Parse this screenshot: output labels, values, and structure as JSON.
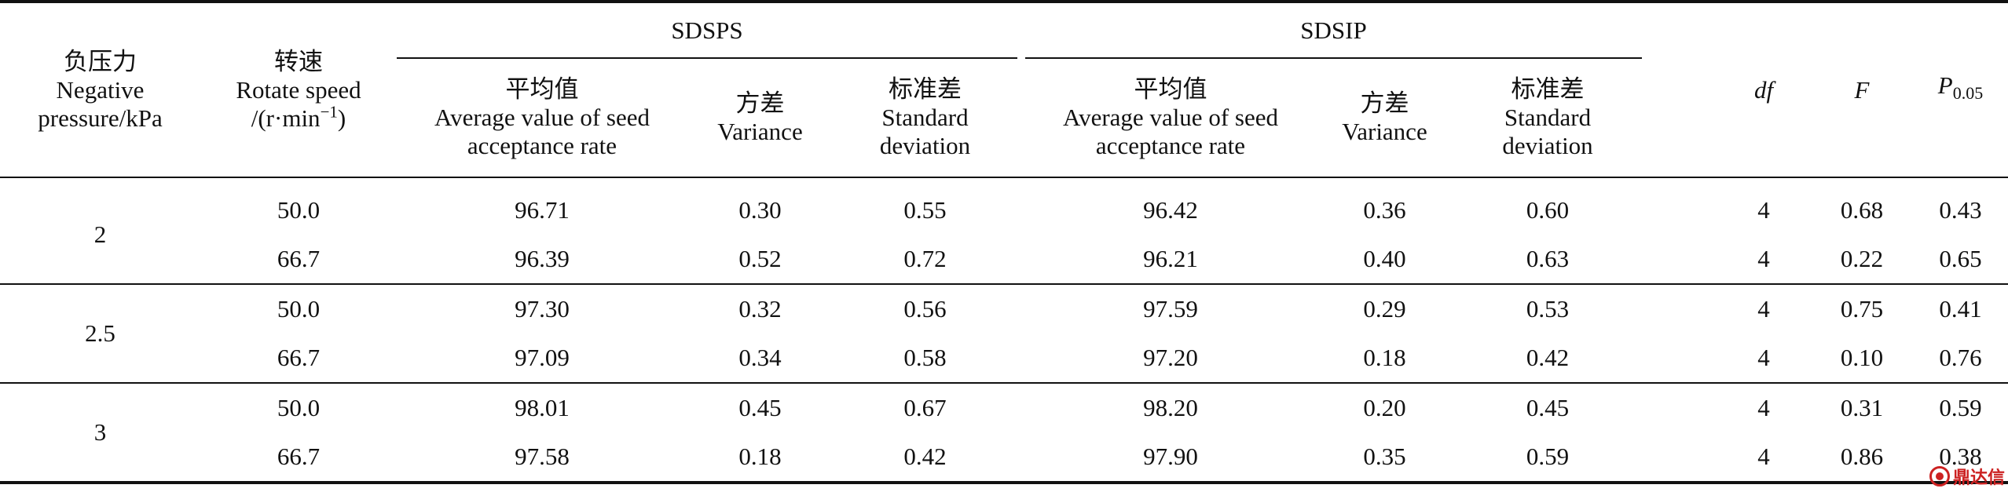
{
  "headers": {
    "pressure": {
      "zh": "负压力",
      "en1": "Negative",
      "en2": "pressure/kPa"
    },
    "speed": {
      "zh": "转速",
      "en1": "Rotate speed",
      "en2": "/(r·min",
      "sup": "−1",
      "en2_end": ")"
    },
    "group1": "SDSPS",
    "group2": "SDSIP",
    "avg": {
      "zh": "平均值",
      "en1": "Average value of seed",
      "en2": "acceptance rate"
    },
    "variance": {
      "zh": "方差",
      "en": "Variance"
    },
    "std": {
      "zh": "标准差",
      "en1": "Standard",
      "en2": "deviation"
    },
    "df": "df",
    "F": "F",
    "P": "P",
    "P_sub": "0.05"
  },
  "rows": [
    {
      "pressure": "2",
      "speed": "50.0",
      "sps_avg": "96.71",
      "sps_var": "0.30",
      "sps_std": "0.55",
      "sip_avg": "96.42",
      "sip_var": "0.36",
      "sip_std": "0.60",
      "df": "4",
      "F": "0.68",
      "P": "0.43"
    },
    {
      "pressure": "",
      "speed": "66.7",
      "sps_avg": "96.39",
      "sps_var": "0.52",
      "sps_std": "0.72",
      "sip_avg": "96.21",
      "sip_var": "0.40",
      "sip_std": "0.63",
      "df": "4",
      "F": "0.22",
      "P": "0.65"
    },
    {
      "pressure": "2.5",
      "speed": "50.0",
      "sps_avg": "97.30",
      "sps_var": "0.32",
      "sps_std": "0.56",
      "sip_avg": "97.59",
      "sip_var": "0.29",
      "sip_std": "0.53",
      "df": "4",
      "F": "0.75",
      "P": "0.41"
    },
    {
      "pressure": "",
      "speed": "66.7",
      "sps_avg": "97.09",
      "sps_var": "0.34",
      "sps_std": "0.58",
      "sip_avg": "97.20",
      "sip_var": "0.18",
      "sip_std": "0.42",
      "df": "4",
      "F": "0.10",
      "P": "0.76"
    },
    {
      "pressure": "3",
      "speed": "50.0",
      "sps_avg": "98.01",
      "sps_var": "0.45",
      "sps_std": "0.67",
      "sip_avg": "98.20",
      "sip_var": "0.20",
      "sip_std": "0.45",
      "df": "4",
      "F": "0.31",
      "P": "0.59"
    },
    {
      "pressure": "",
      "speed": "66.7",
      "sps_avg": "97.58",
      "sps_var": "0.18",
      "sps_std": "0.42",
      "sip_avg": "97.90",
      "sip_var": "0.35",
      "sip_std": "0.59",
      "df": "4",
      "F": "0.86",
      "P": "0.38"
    }
  ],
  "watermark": "鼎达信"
}
